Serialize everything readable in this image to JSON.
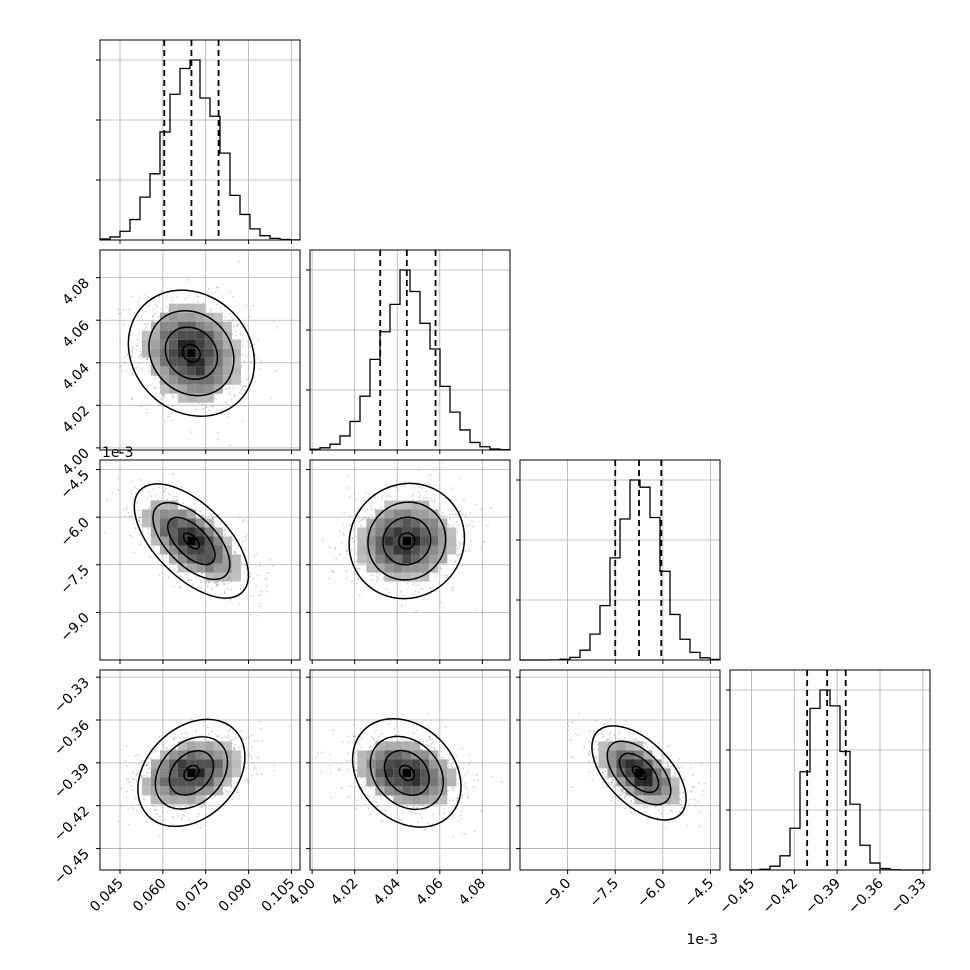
{
  "chart_data": {
    "type": "corner",
    "parameters": [
      {
        "range": [
          0.038,
          0.108
        ],
        "ticks": [
          "0.045",
          "0.060",
          "0.075",
          "0.090",
          "0.105"
        ],
        "tick_values": [
          0.045,
          0.06,
          0.075,
          0.09,
          0.105
        ],
        "scale_offset": "",
        "mean": 0.07,
        "std": 0.0095,
        "quantiles": [
          0.0605,
          0.07,
          0.0795
        ]
      },
      {
        "range": [
          3.999,
          4.093
        ],
        "ticks": [
          "4.00",
          "4.02",
          "4.04",
          "4.06",
          "4.08"
        ],
        "tick_values": [
          4.0,
          4.02,
          4.04,
          4.06,
          4.08
        ],
        "scale_offset": "1e-3",
        "mean": 4.0445,
        "std": 0.013,
        "quantiles": [
          4.032,
          4.0445,
          4.058
        ]
      },
      {
        "range": [
          -10.5,
          -4.2
        ],
        "ticks": [
          "-9.0",
          "-7.5",
          "-6.0",
          "-4.5"
        ],
        "tick_values": [
          -9.0,
          -7.5,
          -6.0,
          -4.5
        ],
        "scale_offset": "1e-3",
        "mean": -6.75,
        "std": 0.7,
        "quantiles": [
          -7.5,
          -6.75,
          -6.05
        ]
      },
      {
        "range": [
          -0.465,
          -0.325
        ],
        "ticks": [
          "-0.45",
          "-0.42",
          "-0.39",
          "-0.36",
          "-0.33"
        ],
        "tick_values": [
          -0.45,
          -0.42,
          -0.39,
          -0.36,
          -0.33
        ],
        "scale_offset": "",
        "mean": -0.397,
        "std": 0.013,
        "quantiles": [
          -0.411,
          -0.397,
          -0.384
        ]
      }
    ],
    "correlations": [
      {
        "pair": [
          0,
          1
        ],
        "rho": -0.15
      },
      {
        "pair": [
          0,
          2
        ],
        "rho": -0.6
      },
      {
        "pair": [
          1,
          2
        ],
        "rho": 0.05
      },
      {
        "pair": [
          0,
          3
        ],
        "rho": 0.3
      },
      {
        "pair": [
          1,
          3
        ],
        "rho": -0.25
      },
      {
        "pair": [
          2,
          3
        ],
        "rho": -0.55
      }
    ],
    "grid": true,
    "quantile_style": "dashed"
  }
}
